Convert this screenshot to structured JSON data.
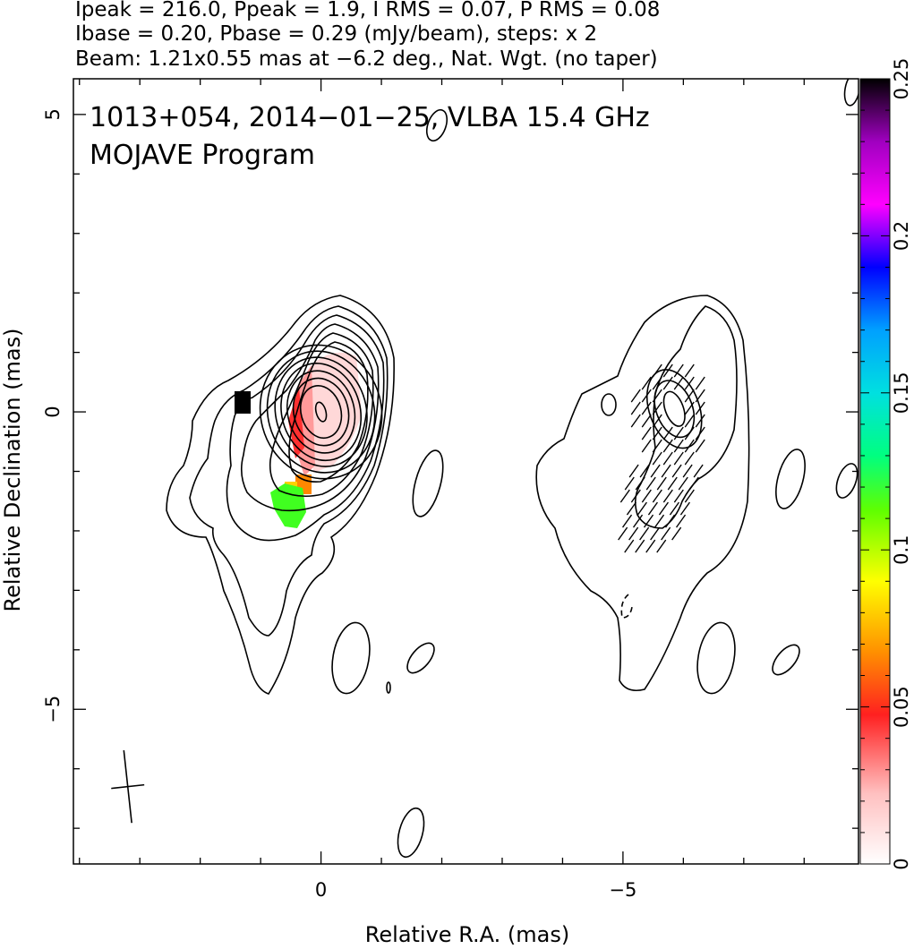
{
  "chart_data": {
    "type": "heatmap",
    "header": [
      "Ipeak = 216.0, Ppeak = 1.9, I RMS = 0.07, P RMS = 0.08",
      "Ibase = 0.20, Pbase = 0.29 (mJy/beam), steps: x 2",
      "Beam: 1.21x0.55 mas at −6.2 deg., Nat. Wgt. (no taper)"
    ],
    "title": "1013+054, 2014−01−25, VLBA 15.4 GHz",
    "subtitle": "MOJAVE Program",
    "xlabel": "Relative R.A. (mas)",
    "ylabel": "Relative Declination (mas)",
    "xlim": [
      4.1,
      -8.9
    ],
    "ylim": [
      -7.6,
      5.6
    ],
    "xticks": [
      0,
      -5
    ],
    "yticks": [
      5,
      0,
      -5
    ],
    "grid": false,
    "colorbar": {
      "min": 0,
      "max": 0.25,
      "ticks": [
        0,
        0.05,
        0.1,
        0.15,
        0.2,
        0.25
      ],
      "tick_labels": [
        "0",
        "0.05",
        "0.1",
        "0.15",
        "0.2",
        "0.25"
      ],
      "colors": [
        "#ffffff",
        "#ffc0c0",
        "#ff2020",
        "#ff9000",
        "#ffff00",
        "#60ff00",
        "#00ff80",
        "#00e0e0",
        "#00a0ff",
        "#0000ff",
        "#ff00ff",
        "#a000c0",
        "#000000"
      ]
    },
    "left_panel": {
      "description": "total intensity contours with fractional polarization color",
      "intensity_contours_mas": [
        {
          "ra": 0.0,
          "dec": 0.0,
          "ra_radii": [
            0.08,
            0.33,
            0.45,
            0.55,
            0.65,
            0.75,
            0.88,
            1.0
          ],
          "dec_radii": [
            0.15,
            0.7,
            0.95,
            1.2,
            1.45,
            1.65,
            1.85,
            2.05
          ],
          "angle_deg": -15
        }
      ],
      "polarization_pixels": [
        {
          "ra": 0.0,
          "dec": 0.0,
          "value": 0.015
        },
        {
          "ra": -0.2,
          "dec": 0.4,
          "value": 0.02
        },
        {
          "ra": 0.2,
          "dec": -0.4,
          "value": 0.025
        },
        {
          "ra": 0.5,
          "dec": -0.2,
          "value": 0.04
        },
        {
          "ra": 0.6,
          "dec": -0.7,
          "value": 0.045
        },
        {
          "ra": 0.5,
          "dec": -1.2,
          "value": 0.06
        },
        {
          "ra": 0.7,
          "dec": -1.3,
          "value": 0.08
        },
        {
          "ra": 0.8,
          "dec": -1.6,
          "value": 0.13
        },
        {
          "ra": 0.75,
          "dec": -1.8,
          "value": 0.14
        },
        {
          "ra": 1.5,
          "dec": 0.15,
          "value": 0.25
        }
      ]
    },
    "right_panel": {
      "description": "lowest intensity contour with polarized intensity contours and EVPA ticks",
      "polarized_contours_mas": [
        {
          "ra": -5.85,
          "dec": 0.05,
          "ra_radii": [
            0.2,
            0.4,
            0.55
          ],
          "dec_radii": [
            0.4,
            0.65,
            0.9
          ],
          "angle_deg": -20
        }
      ]
    },
    "beam": {
      "major_mas": 1.21,
      "minor_mas": 0.55,
      "pa_deg": -6.2,
      "ra": 3.2,
      "dec": -6.3
    }
  }
}
